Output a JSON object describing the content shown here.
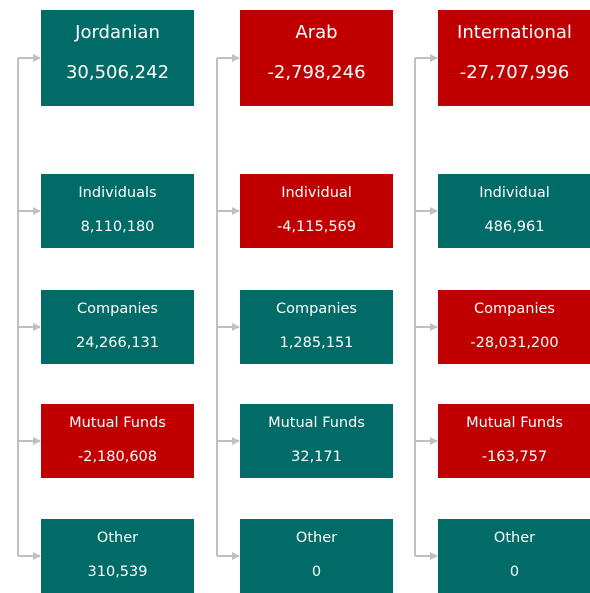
{
  "columns": [
    {
      "title": "Jordanian",
      "value": "30,506,242",
      "items": [
        {
          "label": "Individuals",
          "value": "8,110,180"
        },
        {
          "label": "Companies",
          "value": "24,266,131"
        },
        {
          "label": "Mutual Funds",
          "value": "-2,180,608"
        },
        {
          "label": "Other",
          "value": "310,539"
        }
      ]
    },
    {
      "title": "Arab",
      "value": "-2,798,246",
      "items": [
        {
          "label": "Individual",
          "value": "-4,115,569"
        },
        {
          "label": "Companies",
          "value": "1,285,151"
        },
        {
          "label": "Mutual Funds",
          "value": "32,171"
        },
        {
          "label": "Other",
          "value": "0"
        }
      ]
    },
    {
      "title": "International",
      "value": "-27,707,996",
      "items": [
        {
          "label": "Individual",
          "value": "486,961"
        },
        {
          "label": "Companies",
          "value": "-28,031,200"
        },
        {
          "label": "Mutual Funds",
          "value": "-163,757"
        },
        {
          "label": "Other",
          "value": "0"
        }
      ]
    }
  ]
}
